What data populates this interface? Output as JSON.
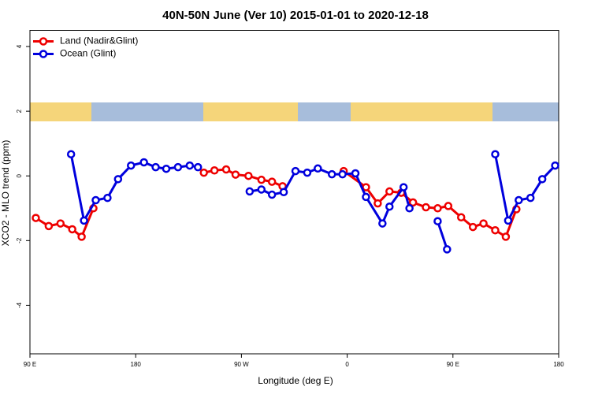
{
  "chart_data": {
    "type": "line",
    "title": "40N-50N June (Ver 10)   2015-01-01 to 2020-12-18",
    "x_label": "Longitude (deg E)",
    "y_label": "XCO2 - MLO trend (ppm)",
    "xlim": [
      90,
      540
    ],
    "xticks": [
      {
        "value": 90,
        "label": "90 E"
      },
      {
        "value": 180,
        "label": "180"
      },
      {
        "value": 270,
        "label": "90 W"
      },
      {
        "value": 360,
        "label": "0"
      },
      {
        "value": 450,
        "label": "90 E"
      },
      {
        "value": 540,
        "label": "180"
      }
    ],
    "ylim": [
      -5.5,
      4.5
    ],
    "yticks": [
      -4,
      -2,
      0,
      2,
      4
    ],
    "legend": "top-left",
    "series": [
      {
        "name": "Land (Nadir&Glint)",
        "color": "#ee0000",
        "x": [
          95,
          106,
          116,
          126,
          134,
          144,
          null,
          238,
          247,
          257,
          265,
          276,
          287,
          296,
          305,
          null,
          357,
          376,
          386,
          396,
          406,
          416,
          427,
          437,
          446,
          457,
          467,
          476,
          486,
          495,
          504
        ],
        "values": [
          -1.3,
          -1.55,
          -1.47,
          -1.65,
          -1.88,
          -1.0,
          null,
          0.1,
          0.17,
          0.2,
          0.04,
          0.0,
          -0.12,
          -0.18,
          -0.32,
          null,
          0.15,
          -0.35,
          -0.85,
          -0.48,
          -0.52,
          -0.82,
          -0.97,
          -1.0,
          -0.93,
          -1.28,
          -1.58,
          -1.47,
          -1.68,
          -1.88,
          -1.03
        ]
      },
      {
        "name": "Ocean (Glint)",
        "color": "#0000dd",
        "x": [
          125,
          136,
          146,
          156,
          165,
          176,
          187,
          197,
          206,
          216,
          226,
          233,
          null,
          277,
          287,
          296,
          306,
          316,
          326,
          335,
          347,
          356,
          367,
          376,
          390,
          396,
          408,
          413,
          null,
          437,
          445,
          null,
          486,
          497,
          506,
          516,
          526,
          537
        ],
        "values": [
          0.67,
          -1.38,
          -0.75,
          -0.68,
          -0.1,
          0.32,
          0.42,
          0.27,
          0.22,
          0.27,
          0.32,
          0.27,
          null,
          -0.48,
          -0.42,
          -0.58,
          -0.5,
          0.15,
          0.1,
          0.23,
          0.05,
          0.05,
          0.08,
          -0.65,
          -1.47,
          -0.95,
          -0.35,
          -1.0,
          null,
          -1.4,
          -2.27,
          null,
          0.67,
          -1.38,
          -0.75,
          -0.68,
          -0.1,
          0.32
        ]
      }
    ]
  }
}
